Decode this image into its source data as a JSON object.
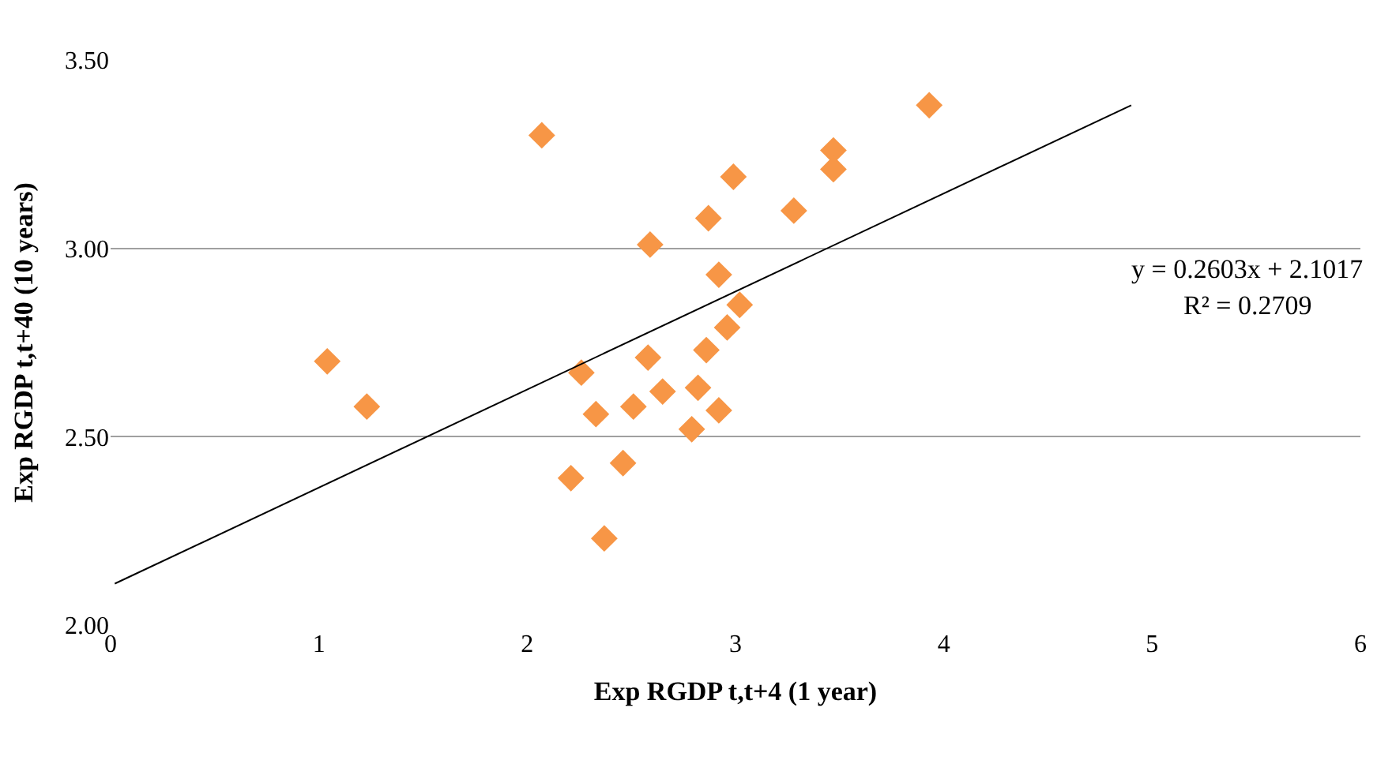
{
  "chart_data": {
    "type": "scatter",
    "xlabel": "Exp RGDP t,t+4 (1 year)",
    "ylabel": "Exp RGDP t,t+40 (10 years)",
    "xlim": [
      0,
      6
    ],
    "xticks": [
      0,
      1,
      2,
      3,
      4,
      5,
      6
    ],
    "ylim": [
      2.0,
      3.5
    ],
    "yticks": [
      {
        "value": 2.0,
        "label": "2.00"
      },
      {
        "value": 2.5,
        "label": "2.50"
      },
      {
        "value": 3.0,
        "label": "3.00"
      },
      {
        "value": 3.5,
        "label": "3.50"
      }
    ],
    "grid": "y",
    "marker": "diamond",
    "series": [
      {
        "color": "#f79646",
        "x": [
          1.04,
          1.23,
          2.07,
          2.59,
          2.87,
          2.99,
          3.28,
          3.47,
          3.47,
          3.93,
          2.92,
          3.02,
          2.96,
          2.86,
          2.58,
          2.26,
          2.65,
          2.82,
          2.33,
          2.51,
          2.79,
          2.92,
          2.21,
          2.46,
          2.37
        ],
        "values": [
          2.7,
          2.58,
          3.3,
          3.01,
          3.08,
          3.19,
          3.1,
          3.26,
          3.21,
          3.38,
          2.93,
          2.85,
          2.79,
          2.73,
          2.71,
          2.67,
          2.62,
          2.63,
          2.56,
          2.58,
          2.52,
          2.57,
          2.39,
          2.43,
          2.23
        ]
      },
      {
        "type": "line",
        "color": "#000000",
        "marker": "none",
        "x": [
          0.02,
          4.9
        ],
        "values": [
          2.11,
          3.38
        ]
      }
    ],
    "annotations": [
      "y = 0.2603x + 2.1017",
      "R² = 0.2709"
    ]
  }
}
